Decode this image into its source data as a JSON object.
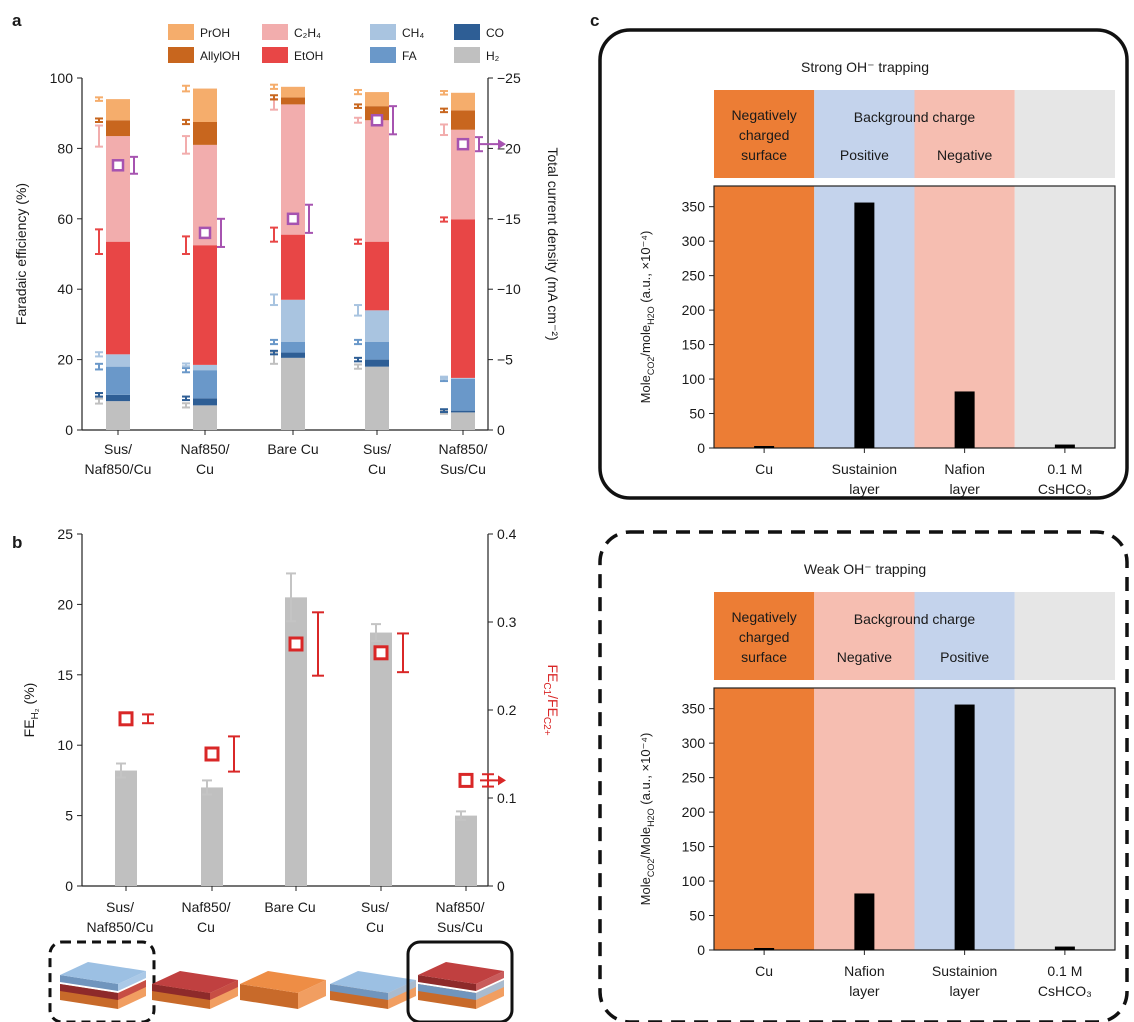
{
  "panel_letters": {
    "a": "a",
    "b": "b",
    "c": "c"
  },
  "colors": {
    "PrOH": "#f5ad6c",
    "AllylOH": "#c8661e",
    "C2H4": "#f2adad",
    "EtOH": "#e84646",
    "CH4": "#a9c4e0",
    "FA": "#6a98c9",
    "CO": "#2e5e95",
    "H2": "#c0c0c0",
    "purple": "#a653b0",
    "red": "#d92727",
    "errgray": "#c4c4c4",
    "cu_orange": "#ec7d35",
    "pos_blue": "#c4d3ec",
    "neg_pink": "#f6beb1",
    "bulk_gray": "#e6e6e6"
  },
  "chart_data": [
    {
      "panel": "a",
      "type": "bar",
      "stacked": true,
      "categories": [
        [
          "Sus/",
          "Naf850/Cu"
        ],
        [
          "Naf850/",
          "Cu"
        ],
        [
          "Bare Cu"
        ],
        [
          "Sus/",
          "Cu"
        ],
        [
          "Naf850/",
          "Sus/Cu"
        ]
      ],
      "ylabel": "Faradaic efficiency (%)",
      "ylim": [
        0,
        100
      ],
      "yticks": [
        "0",
        "20",
        "40",
        "60",
        "80",
        "100"
      ],
      "y2label": "Total current density (mA cm⁻²)",
      "y2lim": [
        0,
        -25
      ],
      "y2ticks": [
        "0",
        "−5",
        "−10",
        "−15",
        "−20",
        "−25"
      ],
      "legend": [
        {
          "key": "PrOH",
          "label": "PrOH"
        },
        {
          "key": "C2H4",
          "label": "C₂H₄"
        },
        {
          "key": "CH4",
          "label": "CH₄"
        },
        {
          "key": "CO",
          "label": "CO"
        },
        {
          "key": "AllylOH",
          "label": "AllylOH"
        },
        {
          "key": "EtOH",
          "label": "EtOH"
        },
        {
          "key": "FA",
          "label": "FA"
        },
        {
          "key": "H2",
          "label": "H₂"
        }
      ],
      "series": [
        {
          "key": "H2",
          "values": [
            8.2,
            7.0,
            20.5,
            18.0,
            5.0
          ],
          "err": [
            0.7,
            0.6,
            1.7,
            0.6,
            0.4
          ]
        },
        {
          "key": "CO",
          "values": [
            1.8,
            2.0,
            1.5,
            2.0,
            0.5
          ],
          "err": [
            0.5,
            0.5,
            0.5,
            0.5,
            0.4
          ]
        },
        {
          "key": "FA",
          "values": [
            8.0,
            8.0,
            3.0,
            5.0,
            9.0
          ],
          "err": [
            0.8,
            0.6,
            0.6,
            0.6,
            0.6
          ]
        },
        {
          "key": "CH4",
          "values": [
            3.5,
            1.5,
            12.0,
            9.0,
            0.3
          ],
          "err": [
            0.6,
            0.4,
            1.5,
            1.5,
            0.3
          ]
        },
        {
          "key": "EtOH",
          "values": [
            32.0,
            34.0,
            18.5,
            19.5,
            45.0
          ],
          "err": [
            3.5,
            2.5,
            2.0,
            0.6,
            0.6
          ]
        },
        {
          "key": "C2H4",
          "values": [
            30.0,
            28.5,
            37.0,
            34.5,
            25.5
          ],
          "err": [
            3.0,
            2.5,
            1.5,
            0.7,
            1.5
          ]
        },
        {
          "key": "AllylOH",
          "values": [
            4.5,
            6.5,
            2.0,
            4.0,
            5.5
          ],
          "err": [
            0.5,
            0.6,
            0.6,
            0.5,
            0.5
          ]
        },
        {
          "key": "PrOH",
          "values": [
            6.0,
            9.5,
            3.0,
            4.0,
            5.0
          ],
          "err": [
            0.5,
            0.8,
            0.6,
            0.6,
            0.5
          ]
        }
      ],
      "current_density": {
        "values": [
          -18.8,
          -14.0,
          -15.0,
          -22.0,
          -20.3
        ],
        "err": [
          0.6,
          1.0,
          1.0,
          1.0,
          0.5
        ]
      }
    },
    {
      "panel": "b",
      "type": "bar",
      "categories": [
        [
          "Sus/",
          "Naf850/Cu"
        ],
        [
          "Naf850/",
          "Cu"
        ],
        [
          "Bare Cu"
        ],
        [
          "Sus/",
          "Cu"
        ],
        [
          "Naf850/",
          "Sus/Cu"
        ]
      ],
      "ylabel_main": "FE",
      "ylabel_sub": "H₂",
      "ylabel_tail": " (%)",
      "ylim": [
        0,
        25
      ],
      "yticks": [
        "0",
        "5",
        "10",
        "15",
        "20",
        "25"
      ],
      "y2label": "FE_C1/FE_C2+",
      "y2lim": [
        0,
        0.4
      ],
      "y2ticks": [
        "0",
        "0.1",
        "0.2",
        "0.3",
        "0.4"
      ],
      "fe_h2": {
        "values": [
          8.2,
          7.0,
          20.5,
          18.0,
          5.0
        ],
        "err": [
          0.5,
          0.5,
          1.7,
          0.6,
          0.3
        ]
      },
      "ratio": {
        "values": [
          0.19,
          0.15,
          0.275,
          0.265,
          0.12
        ],
        "err": [
          0.005,
          0.02,
          0.036,
          0.022,
          0.007
        ]
      }
    },
    {
      "panel": "c-top",
      "type": "bar",
      "title": "Strong OH⁻ trapping",
      "header": {
        "neg_surface": [
          "Negatively",
          "charged",
          "surface"
        ],
        "bg_charge": "Background charge",
        "pos": "Positive",
        "neg": "Negative"
      },
      "categories": [
        [
          "Cu"
        ],
        [
          "Sustainion",
          "layer"
        ],
        [
          "Nafion",
          "layer"
        ],
        [
          "0.1 M",
          "CsHCO₃"
        ]
      ],
      "region_colors": [
        "cu_orange",
        "pos_blue",
        "neg_pink",
        "bulk_gray"
      ],
      "values": [
        0,
        356,
        82,
        5
      ],
      "ylim": [
        0,
        380
      ],
      "yticks": [
        "0",
        "50",
        "100",
        "150",
        "200",
        "250",
        "300",
        "350"
      ],
      "ylabel": "Mole_CO2/mole_H2O (a.u., ×10⁻⁴)"
    },
    {
      "panel": "c-bottom",
      "type": "bar",
      "title": "Weak OH⁻ trapping",
      "header": {
        "neg_surface": [
          "Negatively",
          "charged",
          "surface"
        ],
        "bg_charge": "Background charge",
        "pos": "Positive",
        "neg": "Negative"
      },
      "categories": [
        [
          "Cu"
        ],
        [
          "Nafion",
          "layer"
        ],
        [
          "Sustainion",
          "layer"
        ],
        [
          "0.1 M",
          "CsHCO₃"
        ]
      ],
      "region_colors": [
        "cu_orange",
        "neg_pink",
        "pos_blue",
        "bulk_gray"
      ],
      "values": [
        0,
        82,
        356,
        5
      ],
      "ylim": [
        0,
        380
      ],
      "yticks": [
        "0",
        "50",
        "100",
        "150",
        "200",
        "250",
        "300",
        "350"
      ],
      "ylabel": "Mole_CO2/Mole_H2O (a.u., ×10⁻⁴)"
    }
  ],
  "schematics": [
    {
      "layers": [
        "orange",
        "red",
        "blue"
      ],
      "frame": "dashed"
    },
    {
      "layers": [
        "orange",
        "red"
      ],
      "frame": "none"
    },
    {
      "layers": [
        "orange"
      ],
      "frame": "none"
    },
    {
      "layers": [
        "orange",
        "blue"
      ],
      "frame": "none"
    },
    {
      "layers": [
        "orange",
        "blue",
        "red"
      ],
      "frame": "solid"
    }
  ]
}
